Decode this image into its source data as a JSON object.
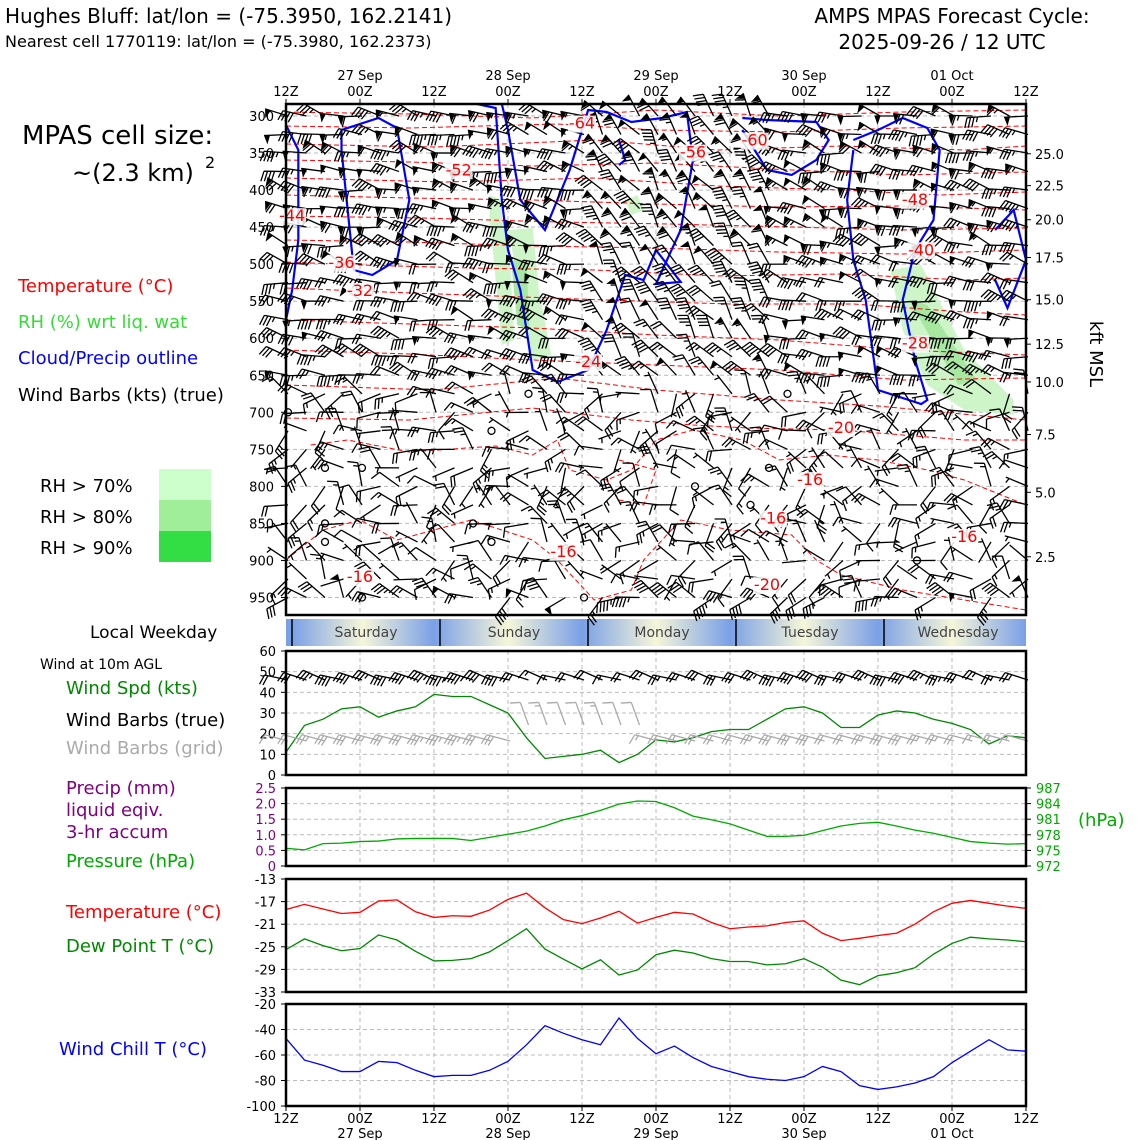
{
  "header": {
    "station": "Hughes Bluff: lat/lon = (-75.3950, 162.2141)",
    "nearest": "Nearest cell 1770119: lat/lon = (-75.3980, 162.2373)",
    "cycle_title": "AMPS MPAS Forecast Cycle:",
    "cycle_time": "2025-09-26 / 12 UTC"
  },
  "legend": {
    "cell_size_line1": "MPAS cell size:",
    "cell_size_line2": "~(2.3 km)",
    "cell_size_exp": "2",
    "temperature": "Temperature (°C)",
    "rh": "RH (%) wrt liq. wat",
    "cloud": "Cloud/Precip outline",
    "wind": "Wind Barbs (kts) (true)",
    "rh70": "RH > 70%",
    "rh80": "RH > 80%",
    "rh90": "RH > 90%",
    "kft": "kft MSL",
    "hpa_unit": "(hPa)",
    "local_weekday": "Local Weekday",
    "wind10m": "Wind at 10m AGL",
    "wind_spd": "Wind Spd (kts)",
    "wind_barbs_true": "Wind Barbs (true)",
    "wind_barbs_grid": "Wind Barbs (grid)",
    "precip1": "Precip (mm)",
    "precip2": "liquid eqiv.",
    "precip3": "3-hr accum",
    "pressure": "Pressure (hPa)",
    "temp2": "Temperature (°C)",
    "dewpoint": "Dew Point T (°C)",
    "windchill": "Wind Chill T (°C)"
  },
  "colors": {
    "temperature": "#ff0000",
    "rh": "#33dd33",
    "cloud": "#0000ff",
    "precip": "#800080",
    "pressure": "#00aa00",
    "dewpoint": "#008800",
    "windchill": "#0000ff",
    "grid_barbs": "#aaaaaa",
    "rh70": "#ccffcc",
    "rh80": "#a0ee9a",
    "rh90": "#33dd44"
  },
  "chart_data": [
    {
      "type": "line",
      "name": "time-height cross-section",
      "x_ticks_top": [
        "12Z",
        "00Z",
        "12Z",
        "00Z",
        "12Z",
        "00Z",
        "12Z",
        "00Z",
        "12Z",
        "00Z",
        "12Z"
      ],
      "x_dates_top": [
        "27 Sep",
        "28 Sep",
        "29 Sep",
        "30 Sep",
        "01 Oct"
      ],
      "x_range_hours": [
        0,
        120
      ],
      "ylabel_left": "Pressure (hPa)",
      "y_ticks_left": [
        300,
        350,
        400,
        450,
        500,
        550,
        600,
        650,
        700,
        750,
        800,
        850,
        900,
        950
      ],
      "y_ticks_right": [
        "25.0",
        "22.5",
        "20.0",
        "17.5",
        "15.0",
        "12.5",
        "10.0",
        "7.5",
        "5.0",
        "2.5"
      ],
      "y_ticks_right_p": [
        351,
        394,
        440,
        491,
        548,
        608,
        659,
        730,
        808,
        895
      ],
      "temperature_labels": [
        {
          "t": "-64",
          "h": 48,
          "p": 317
        },
        {
          "t": "-60",
          "h": 76,
          "p": 340
        },
        {
          "t": "-56",
          "h": 66,
          "p": 356
        },
        {
          "t": "-52",
          "h": 28,
          "p": 380
        },
        {
          "t": "-48",
          "h": 102,
          "p": 420
        },
        {
          "t": "-44",
          "h": 1,
          "p": 442
        },
        {
          "t": "-40",
          "h": 103,
          "p": 488
        },
        {
          "t": "-36",
          "h": 9,
          "p": 505
        },
        {
          "t": "-32",
          "h": 12,
          "p": 543
        },
        {
          "t": "-28",
          "h": 102,
          "p": 614
        },
        {
          "t": "-24",
          "h": 49,
          "p": 639
        },
        {
          "t": "-20",
          "h": 90,
          "p": 728
        },
        {
          "t": "-16",
          "h": 85,
          "p": 798
        },
        {
          "t": "-16",
          "h": 79,
          "p": 850
        },
        {
          "t": "-16",
          "h": 110,
          "p": 875
        },
        {
          "t": "-16",
          "h": 45,
          "p": 895
        },
        {
          "t": "-16",
          "h": 12,
          "p": 929
        },
        {
          "t": "-20",
          "h": 78,
          "p": 940
        }
      ]
    },
    {
      "type": "line",
      "name": "10m wind speed",
      "ylabel": "Wind Spd (kts)",
      "ylim": [
        0,
        60
      ],
      "y_ticks": [
        0,
        10,
        20,
        30,
        40,
        50,
        60
      ],
      "x_hours": [
        0,
        3,
        6,
        9,
        12,
        15,
        18,
        21,
        24,
        27,
        30,
        33,
        36,
        39,
        42,
        45,
        48,
        51,
        54,
        57,
        60,
        63,
        66,
        69,
        72,
        75,
        78,
        81,
        84,
        87,
        90,
        93,
        96,
        99,
        102,
        105,
        108,
        111,
        114,
        117,
        120
      ],
      "values": [
        11,
        24,
        27,
        32,
        33,
        28,
        31,
        33,
        39,
        38,
        38,
        34,
        30,
        18,
        8,
        9,
        10,
        12,
        6,
        10,
        17,
        16,
        18,
        21,
        22,
        22,
        27,
        32,
        33,
        30,
        23,
        23,
        29,
        31,
        30,
        27,
        25,
        22,
        15,
        19,
        18
      ]
    },
    {
      "type": "line",
      "name": "precip and pressure",
      "ylabel_left": "Precip (mm)",
      "ylim_left": [
        0,
        2.5
      ],
      "y_ticks_left": [
        "0",
        "0.5",
        "1.0",
        "1.5",
        "2.0",
        "2.5"
      ],
      "ylabel_right": "(hPa)",
      "ylim_right": [
        972,
        987
      ],
      "y_ticks_right": [
        972,
        975,
        978,
        981,
        984,
        987
      ],
      "precip_values": [
        0,
        0,
        0,
        0,
        0,
        0,
        0,
        0,
        0,
        0,
        0,
        0,
        0,
        0,
        0,
        0,
        0,
        0,
        0,
        0,
        0,
        0,
        0,
        0,
        0,
        0,
        0,
        0,
        0,
        0,
        0,
        0,
        0,
        0,
        0,
        0,
        0,
        0,
        0,
        0,
        0
      ],
      "pressure_values": [
        975.4,
        975.1,
        976.3,
        976.4,
        976.7,
        976.8,
        977.2,
        977.3,
        977.3,
        977.3,
        976.9,
        977.5,
        978.1,
        978.7,
        979.7,
        980.9,
        981.7,
        982.7,
        983.9,
        984.5,
        984.4,
        983.2,
        981.6,
        980.9,
        980.1,
        978.9,
        977.7,
        977.7,
        977.9,
        978.8,
        979.7,
        980.2,
        980.4,
        979.7,
        978.9,
        978.3,
        977.5,
        976.7,
        976.4,
        976.2,
        976.3
      ]
    },
    {
      "type": "line",
      "name": "temperature and dew point",
      "ylim": [
        -33,
        -13
      ],
      "y_ticks": [
        -13,
        -17,
        -21,
        -25,
        -29,
        -33
      ],
      "series": [
        {
          "name": "Temperature (°C)",
          "values": [
            -18.4,
            -17.5,
            -18.3,
            -19.1,
            -18.9,
            -16.9,
            -16.7,
            -18.8,
            -19.8,
            -19.5,
            -19.6,
            -18.5,
            -16.6,
            -15.5,
            -18.1,
            -20.2,
            -20.9,
            -19.9,
            -18.7,
            -20.8,
            -19.8,
            -18.9,
            -19.2,
            -20.7,
            -21.8,
            -21.5,
            -21.3,
            -20.7,
            -20.4,
            -22.6,
            -23.9,
            -23.5,
            -23.0,
            -22.6,
            -21.0,
            -18.8,
            -17.3,
            -16.8,
            -17.3,
            -17.8,
            -18.2
          ]
        },
        {
          "name": "Dew Point T (°C)",
          "values": [
            -25.5,
            -23.6,
            -24.8,
            -25.7,
            -25.3,
            -22.9,
            -23.8,
            -25.8,
            -27.5,
            -27.4,
            -27.1,
            -25.9,
            -23.9,
            -21.8,
            -25.4,
            -27.2,
            -28.9,
            -27.3,
            -30.0,
            -29.1,
            -26.4,
            -25.6,
            -26.1,
            -27.1,
            -27.6,
            -27.6,
            -28.2,
            -28.0,
            -27.1,
            -28.6,
            -30.9,
            -31.7,
            -30.1,
            -29.6,
            -28.7,
            -26.3,
            -24.4,
            -23.3,
            -23.6,
            -23.8,
            -24.1
          ]
        }
      ]
    },
    {
      "type": "line",
      "name": "wind chill",
      "ylabel": "Wind Chill T (°C)",
      "ylim": [
        -100,
        -20
      ],
      "y_ticks": [
        -20,
        -40,
        -60,
        -80,
        -100
      ],
      "x_ticks_bottom": [
        "12Z",
        "00Z",
        "12Z",
        "00Z",
        "12Z",
        "00Z",
        "12Z",
        "00Z",
        "12Z",
        "00Z",
        "12Z"
      ],
      "x_dates_bottom": [
        "27 Sep",
        "28 Sep",
        "29 Sep",
        "30 Sep",
        "01 Oct"
      ],
      "values": [
        -47,
        -64,
        -68,
        -73,
        -73,
        -65,
        -66,
        -72,
        -77,
        -76,
        -76,
        -72,
        -65,
        -52,
        -37,
        -43,
        -48,
        -52,
        -31,
        -47,
        -59,
        -53,
        -62,
        -69,
        -73,
        -77,
        -79,
        -80,
        -77,
        -69,
        -73,
        -84,
        -87,
        -85,
        -82,
        -77,
        -66,
        -57,
        -48,
        -56,
        -57
      ]
    }
  ],
  "weekday_bar": {
    "days": [
      "Saturday",
      "Sunday",
      "Monday",
      "Tuesday",
      "Wednesday"
    ]
  }
}
